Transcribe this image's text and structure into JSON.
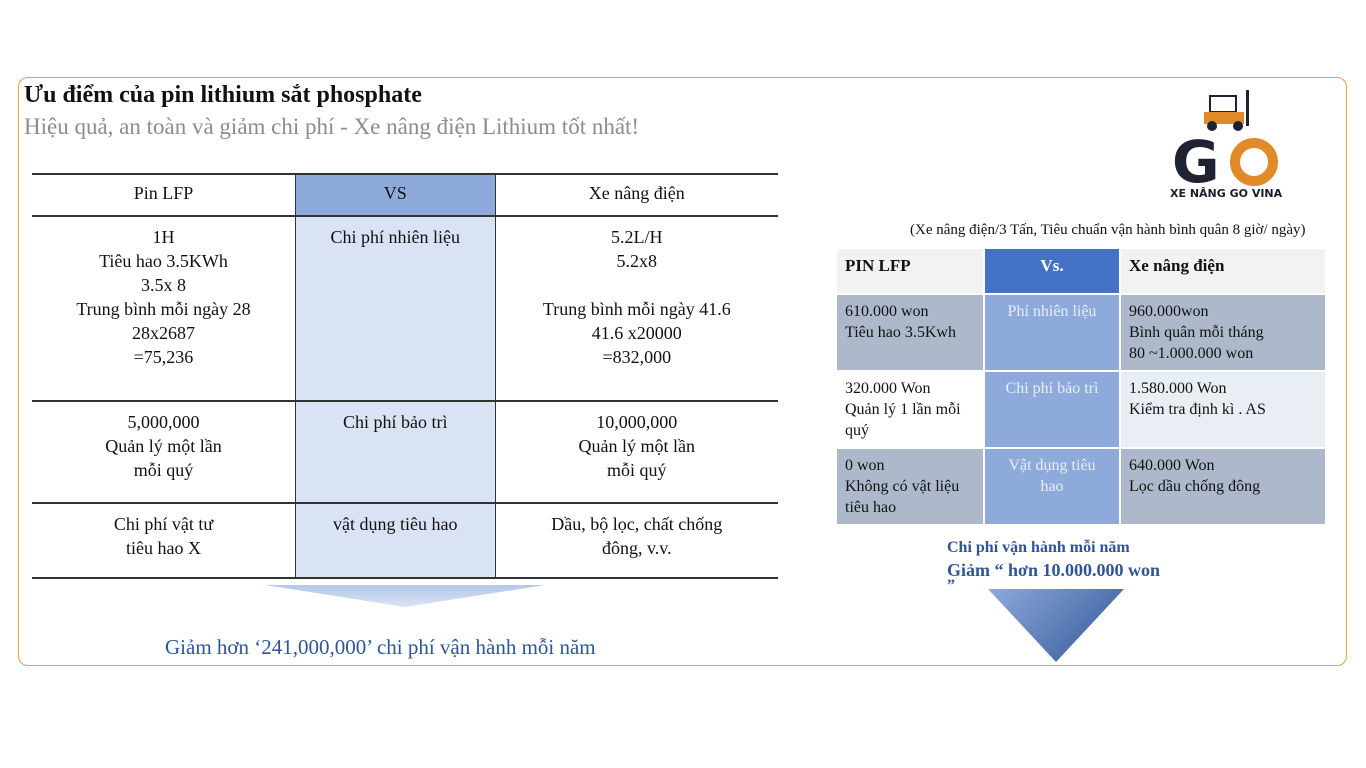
{
  "header": {
    "title": "Ưu điểm của pin lithium sắt phosphate",
    "subtitle": "Hiệu quả, an toàn và giảm chi phí - Xe nâng điện Lithium tốt nhất!"
  },
  "left_table": {
    "headers": [
      "Pin LFP",
      "VS",
      "Xe nâng điện"
    ],
    "rows": [
      {
        "a": "1H\nTiêu hao 3.5KWh\n3.5x 8\nTrung bình mỗi ngày 28\n28x2687\n=75,236",
        "mid": "Chi phí nhiên liệu",
        "b": "5.2L/H\n5.2x8\n\nTrung bình mỗi ngày 41.6\n41.6 x20000\n=832,000"
      },
      {
        "a": "5,000,000\nQuản lý một lần\nmỗi quý",
        "mid": "Chi phí bảo trì",
        "b": "10,000,000\nQuản lý một lần\nmỗi quý"
      },
      {
        "a": "Chi phí vật tư\ntiêu hao X",
        "mid": "vật dụng tiêu hao",
        "b": "Dầu, bộ lọc, chất chống\nđông, v.v."
      }
    ],
    "note": "Giảm hơn ‘241,000,000’ chi phí vận hành mỗi năm"
  },
  "logo": {
    "text": "GO",
    "caption": "XE NÂNG GO VINA",
    "colors": {
      "dark": "#1e2233",
      "orange": "#e08a2a"
    }
  },
  "right_table": {
    "condition": "(Xe nâng điện/3 Tấn, Tiêu chuẩn vận hành bình quân 8 giờ/ ngày)",
    "headers": [
      "PIN LFP",
      "Vs.",
      "Xe nâng điện"
    ],
    "rows": [
      {
        "a": "610.000  won\nTiêu hao 3.5Kwh",
        "mid": "Phí nhiên liệu",
        "b": "960.000won\nBình quân mỗi tháng\n80 ~1.000.000  won"
      },
      {
        "a": "320.000  Won\nQuản lý 1 lần mỗi\nquý",
        "mid": "Chi phí bảo trì",
        "b": "1.580.000  Won\nKiểm tra định kì . AS"
      },
      {
        "a": "0 won\nKhông có vật liệu\ntiêu hao",
        "mid": "Vật dụng tiêu\nhao",
        "b": "640.000  Won\nLọc dầu chống đông"
      }
    ],
    "note_line1": "Chi phí vận hành mỗi năm",
    "note_line2": "Giảm “ hơn 10.000.000 won",
    "note_line3": "”"
  },
  "colors": {
    "frame": "#e5a04a",
    "accent_blue": "#4472c4",
    "note_blue": "#2f5597"
  }
}
